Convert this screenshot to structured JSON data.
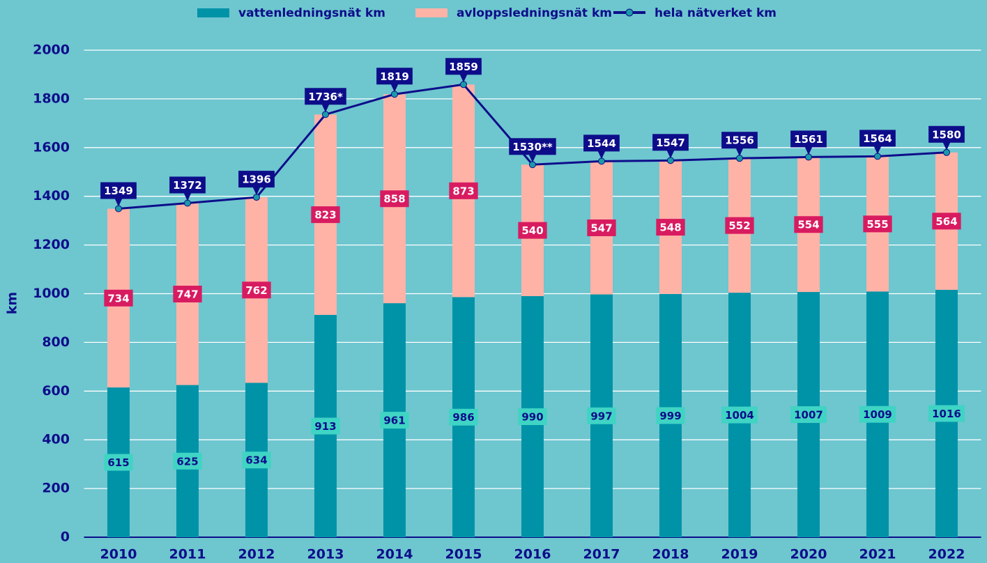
{
  "chart_data": {
    "type": "bar",
    "stacked": true,
    "categories": [
      "2010",
      "2011",
      "2012",
      "2013",
      "2014",
      "2015",
      "2016",
      "2017",
      "2018",
      "2019",
      "2020",
      "2021",
      "2022"
    ],
    "series": [
      {
        "name": "vattenledningsnät km",
        "type": "bar",
        "color": "#0093a8",
        "values": [
          615,
          625,
          634,
          913,
          961,
          986,
          990,
          997,
          999,
          1004,
          1007,
          1009,
          1016
        ]
      },
      {
        "name": "avloppsledningsnät km",
        "type": "bar",
        "color": "#ffb3a7",
        "values": [
          734,
          747,
          762,
          823,
          858,
          873,
          540,
          547,
          548,
          552,
          554,
          555,
          564
        ]
      },
      {
        "name": "hela nätverket km",
        "type": "line",
        "color": "#0d0d8a",
        "values": [
          1349,
          1372,
          1396,
          1736,
          1819,
          1859,
          1530,
          1544,
          1547,
          1556,
          1561,
          1564,
          1580
        ],
        "value_labels": [
          "1349",
          "1372",
          "1396",
          "1736*",
          "1819",
          "1859",
          "1530**",
          "1544",
          "1547",
          "1556",
          "1561",
          "1564",
          "1580"
        ]
      }
    ],
    "y_label": "km",
    "ylim": [
      0,
      2000
    ],
    "yticks": [
      0,
      200,
      400,
      600,
      800,
      1000,
      1200,
      1400,
      1600,
      1800,
      2000
    ],
    "grid": true,
    "legend": "top"
  }
}
